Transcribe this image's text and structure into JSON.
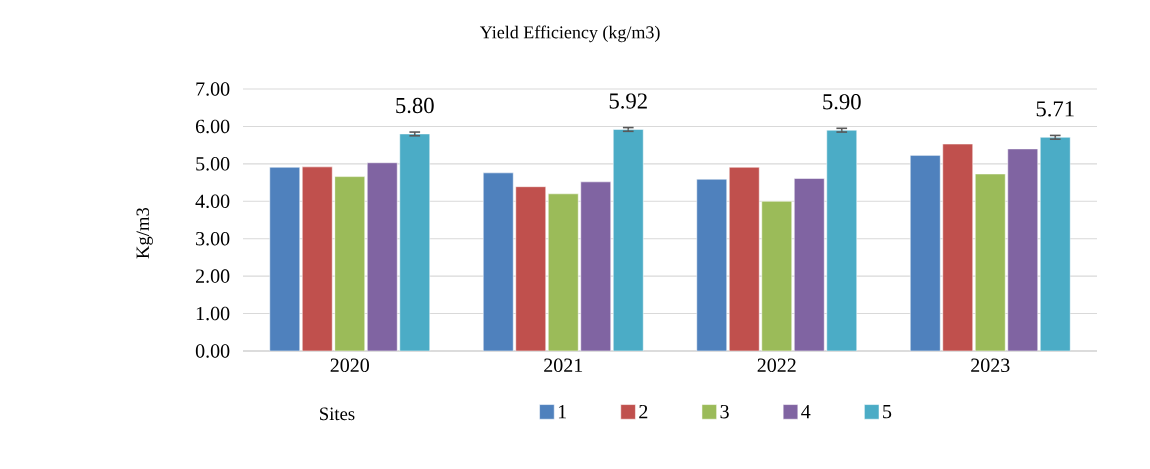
{
  "chart_data": {
    "type": "bar",
    "title": "Yield Efficiency (kg/m3)",
    "xlabel": "Sites",
    "ylabel": "Kg/m3",
    "categories": [
      "2020",
      "2021",
      "2022",
      "2023"
    ],
    "series": [
      {
        "name": "1",
        "color": "#4f81bd",
        "values": [
          4.91,
          4.76,
          4.59,
          5.23
        ]
      },
      {
        "name": "2",
        "color": "#c0504d",
        "values": [
          4.92,
          4.39,
          4.91,
          5.53
        ]
      },
      {
        "name": "3",
        "color": "#9bbb59",
        "values": [
          4.66,
          4.2,
          4.0,
          4.73
        ]
      },
      {
        "name": "4",
        "color": "#8064a2",
        "values": [
          5.03,
          4.52,
          4.61,
          5.4
        ]
      },
      {
        "name": "5",
        "color": "#4bacc6",
        "values": [
          5.8,
          5.92,
          5.9,
          5.71
        ],
        "errors": [
          0.05,
          0.05,
          0.05,
          0.05
        ],
        "value_labels": [
          "5.80",
          "5.92",
          "5.90",
          "5.71"
        ]
      }
    ],
    "ylim": [
      0,
      7
    ],
    "yticks": [
      {
        "value": 0,
        "label": "0.00"
      },
      {
        "value": 1,
        "label": "1.00"
      },
      {
        "value": 2,
        "label": "2.00"
      },
      {
        "value": 3,
        "label": "3.00"
      },
      {
        "value": 4,
        "label": "4.00"
      },
      {
        "value": 5,
        "label": "5.00"
      },
      {
        "value": 6,
        "label": "6.00"
      },
      {
        "value": 7,
        "label": "7.00"
      }
    ],
    "grid": "y",
    "legend": "bottom"
  }
}
